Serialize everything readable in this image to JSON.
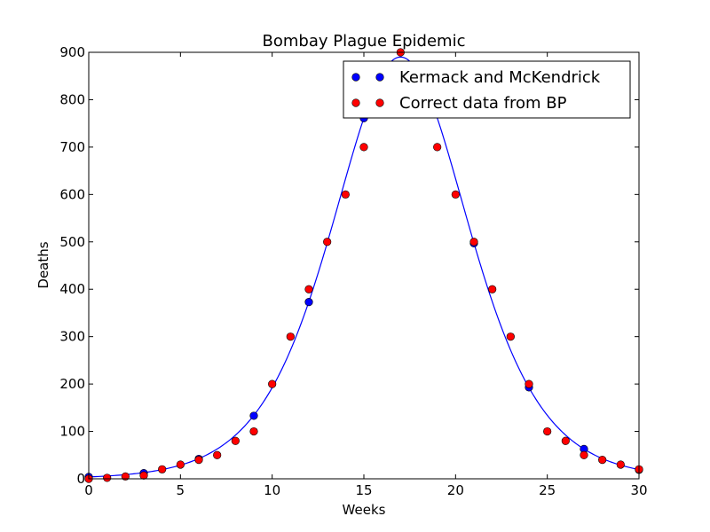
{
  "chart_data": {
    "type": "scatter",
    "title": "Bombay Plague Epidemic",
    "xlabel": "Weeks",
    "ylabel": "Deaths",
    "xlim": [
      0,
      30
    ],
    "ylim": [
      0,
      900
    ],
    "xticks": [
      0,
      5,
      10,
      15,
      20,
      25,
      30
    ],
    "yticks": [
      0,
      100,
      200,
      300,
      400,
      500,
      600,
      700,
      800,
      900
    ],
    "xtick_labels": [
      "0",
      "5",
      "10",
      "15",
      "20",
      "25",
      "30"
    ],
    "ytick_labels": [
      "0",
      "100",
      "200",
      "300",
      "400",
      "500",
      "600",
      "700",
      "800",
      "900"
    ],
    "grid": false,
    "legend_position": "top-right",
    "series": [
      {
        "name": "Kermack and McKendrick",
        "color": "#0000ff",
        "style": "markers-with-fitted-curve",
        "x": [
          0,
          3,
          6,
          9,
          12,
          15,
          18,
          21,
          24,
          27,
          30
        ],
        "y": [
          4,
          12,
          42,
          133,
          373,
          761,
          862,
          497,
          193,
          63,
          19
        ]
      },
      {
        "name": "Correct data from BP",
        "color": "#ff0000",
        "style": "markers",
        "x": [
          0,
          1,
          2,
          3,
          4,
          5,
          6,
          7,
          8,
          9,
          10,
          11,
          12,
          13,
          14,
          15,
          16,
          17,
          18,
          19,
          20,
          21,
          22,
          23,
          24,
          25,
          26,
          27,
          28,
          29,
          30
        ],
        "y": [
          0,
          2,
          5,
          7,
          20,
          30,
          40,
          50,
          80,
          100,
          200,
          300,
          400,
          500,
          600,
          700,
          800,
          900,
          800,
          700,
          600,
          500,
          400,
          300,
          200,
          100,
          80,
          50,
          40,
          30,
          20
        ]
      }
    ],
    "curve": {
      "series": "Kermack and McKendrick",
      "formula": "890 * sech^2(0.2*t - 3.4)"
    }
  }
}
